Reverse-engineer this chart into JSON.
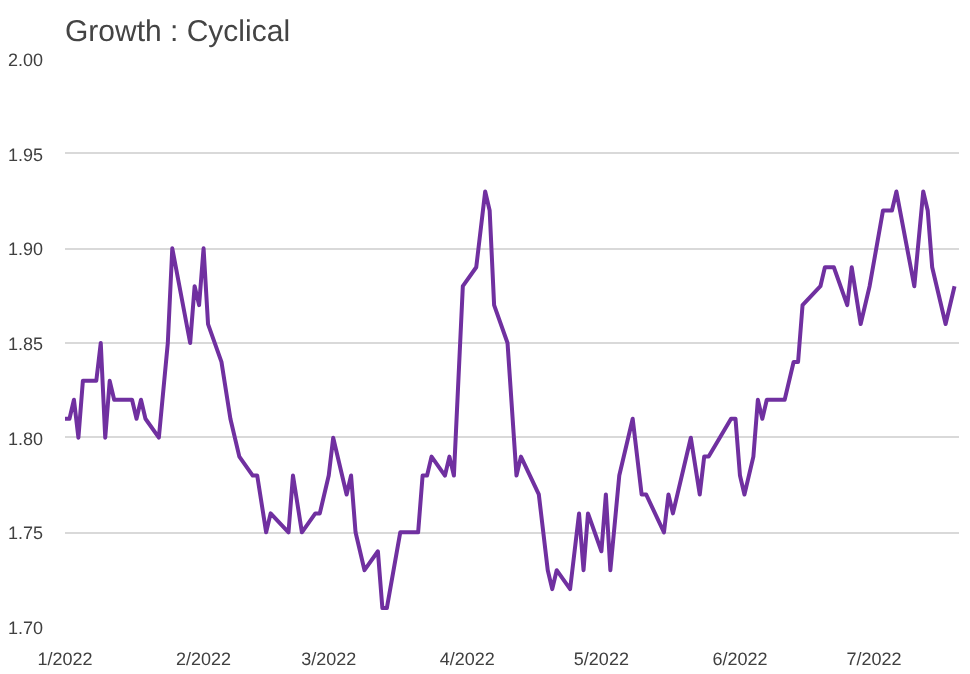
{
  "chart_data": {
    "type": "line",
    "title": "Growth : Cyclical",
    "x": [
      "2022-01-01",
      "2022-01-02",
      "2022-01-03",
      "2022-01-04",
      "2022-01-05",
      "2022-01-08",
      "2022-01-09",
      "2022-01-10",
      "2022-01-11",
      "2022-01-12",
      "2022-01-16",
      "2022-01-17",
      "2022-01-18",
      "2022-01-19",
      "2022-01-22",
      "2022-01-24",
      "2022-01-25",
      "2022-01-29",
      "2022-01-30",
      "2022-01-31",
      "2022-02-01",
      "2022-02-02",
      "2022-02-05",
      "2022-02-07",
      "2022-02-09",
      "2022-02-12",
      "2022-02-13",
      "2022-02-15",
      "2022-02-16",
      "2022-02-20",
      "2022-02-21",
      "2022-02-23",
      "2022-02-26",
      "2022-02-27",
      "2022-03-01",
      "2022-03-02",
      "2022-03-05",
      "2022-03-06",
      "2022-03-07",
      "2022-03-09",
      "2022-03-12",
      "2022-03-13",
      "2022-03-14",
      "2022-03-17",
      "2022-03-21",
      "2022-03-22",
      "2022-03-23",
      "2022-03-24",
      "2022-03-27",
      "2022-03-28",
      "2022-03-29",
      "2022-03-31",
      "2022-04-03",
      "2022-04-05",
      "2022-04-06",
      "2022-04-07",
      "2022-04-10",
      "2022-04-12",
      "2022-04-13",
      "2022-04-17",
      "2022-04-19",
      "2022-04-20",
      "2022-04-21",
      "2022-04-24",
      "2022-04-26",
      "2022-04-27",
      "2022-04-28",
      "2022-05-01",
      "2022-05-02",
      "2022-05-03",
      "2022-05-05",
      "2022-05-08",
      "2022-05-10",
      "2022-05-11",
      "2022-05-15",
      "2022-05-16",
      "2022-05-17",
      "2022-05-21",
      "2022-05-23",
      "2022-05-24",
      "2022-05-25",
      "2022-05-30",
      "2022-05-31",
      "2022-06-01",
      "2022-06-02",
      "2022-06-04",
      "2022-06-05",
      "2022-06-06",
      "2022-06-07",
      "2022-06-11",
      "2022-06-13",
      "2022-06-14",
      "2022-06-15",
      "2022-06-19",
      "2022-06-20",
      "2022-06-22",
      "2022-06-25",
      "2022-06-26",
      "2022-06-28",
      "2022-06-30",
      "2022-07-03",
      "2022-07-05",
      "2022-07-06",
      "2022-07-10",
      "2022-07-12",
      "2022-07-13",
      "2022-07-14",
      "2022-07-17",
      "2022-07-19"
    ],
    "series": [
      {
        "color": "#7030a0",
        "values": [
          1.81,
          1.81,
          1.82,
          1.8,
          1.83,
          1.83,
          1.85,
          1.8,
          1.83,
          1.82,
          1.82,
          1.81,
          1.82,
          1.81,
          1.8,
          1.85,
          1.9,
          1.85,
          1.88,
          1.87,
          1.9,
          1.86,
          1.84,
          1.81,
          1.79,
          1.78,
          1.78,
          1.75,
          1.76,
          1.75,
          1.78,
          1.75,
          1.76,
          1.76,
          1.78,
          1.8,
          1.77,
          1.78,
          1.75,
          1.73,
          1.74,
          1.71,
          1.71,
          1.75,
          1.75,
          1.78,
          1.78,
          1.79,
          1.78,
          1.79,
          1.78,
          1.88,
          1.89,
          1.93,
          1.92,
          1.87,
          1.85,
          1.78,
          1.79,
          1.77,
          1.73,
          1.72,
          1.73,
          1.72,
          1.76,
          1.73,
          1.76,
          1.74,
          1.77,
          1.73,
          1.78,
          1.81,
          1.77,
          1.77,
          1.75,
          1.77,
          1.76,
          1.8,
          1.77,
          1.79,
          1.79,
          1.81,
          1.81,
          1.78,
          1.77,
          1.79,
          1.82,
          1.81,
          1.82,
          1.82,
          1.84,
          1.84,
          1.87,
          1.88,
          1.89,
          1.89,
          1.87,
          1.89,
          1.86,
          1.88,
          1.92,
          1.92,
          1.93,
          1.88,
          1.93,
          1.92,
          1.89,
          1.86,
          1.88
        ]
      }
    ],
    "xlim": [
      "2022-01-01",
      "2022-07-20"
    ],
    "xticks": [
      {
        "value": "2022-01-01",
        "label": "1/2022"
      },
      {
        "value": "2022-02-01",
        "label": "2/2022"
      },
      {
        "value": "2022-03-01",
        "label": "3/2022"
      },
      {
        "value": "2022-04-01",
        "label": "4/2022"
      },
      {
        "value": "2022-05-01",
        "label": "5/2022"
      },
      {
        "value": "2022-06-01",
        "label": "6/2022"
      },
      {
        "value": "2022-07-01",
        "label": "7/2022"
      }
    ],
    "ylim": [
      1.7,
      2.0
    ],
    "yticks": [
      {
        "value": 1.7,
        "label": "1.70"
      },
      {
        "value": 1.75,
        "label": "1.75"
      },
      {
        "value": 1.8,
        "label": "1.80"
      },
      {
        "value": 1.85,
        "label": "1.85"
      },
      {
        "value": 1.9,
        "label": "1.90"
      },
      {
        "value": 1.95,
        "label": "1.95"
      },
      {
        "value": 2.0,
        "label": "2.00"
      }
    ],
    "grid": "y",
    "line_style": "solid"
  }
}
